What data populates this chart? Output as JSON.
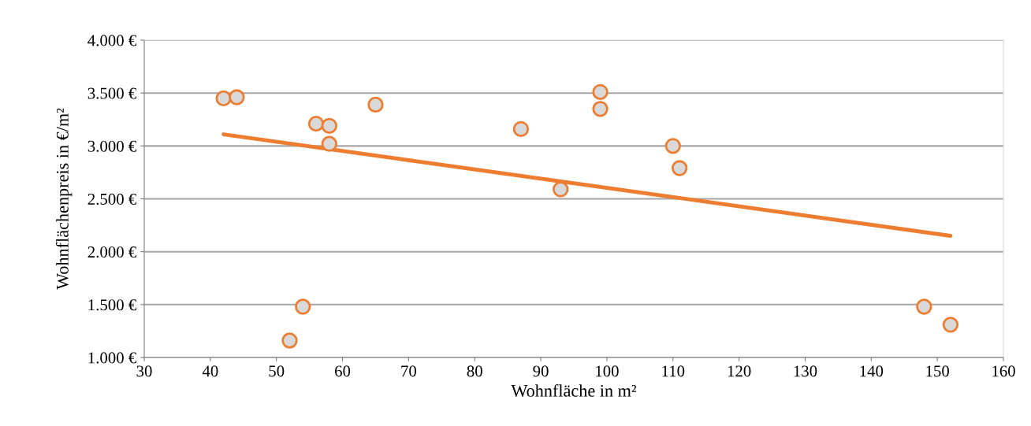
{
  "chart_data": {
    "type": "scatter",
    "xlabel": "Wohnfläche in m²",
    "ylabel": "Wohnflächenpreis in €/m²",
    "xlim": [
      30,
      160
    ],
    "xticks": [
      30,
      40,
      50,
      60,
      70,
      80,
      90,
      100,
      110,
      120,
      130,
      140,
      150,
      160
    ],
    "ylim": [
      1000,
      4000
    ],
    "yticks": [
      {
        "value": 1000,
        "label": "1.000 €"
      },
      {
        "value": 1500,
        "label": "1.500 €"
      },
      {
        "value": 2000,
        "label": "2.000 €"
      },
      {
        "value": 2500,
        "label": "2.500 €"
      },
      {
        "value": 3000,
        "label": "3.000 €"
      },
      {
        "value": 3500,
        "label": "3.500 €"
      },
      {
        "value": 4000,
        "label": "4.000 €"
      }
    ],
    "grid": "y",
    "series": [
      {
        "marker": "circle",
        "color": "#ed7d31",
        "x": [
          42,
          44,
          56,
          58,
          58,
          65,
          54,
          52,
          87,
          93,
          99,
          99,
          110,
          111,
          148,
          152
        ],
        "values": [
          3450,
          3460,
          3210,
          3190,
          3020,
          3390,
          1480,
          1160,
          3160,
          2590,
          3510,
          3350,
          3000,
          2790,
          1480,
          1310
        ]
      },
      {
        "type": "line",
        "color": "#ed7d31",
        "x": [
          42,
          152
        ],
        "values": [
          3110,
          2150
        ]
      }
    ]
  }
}
